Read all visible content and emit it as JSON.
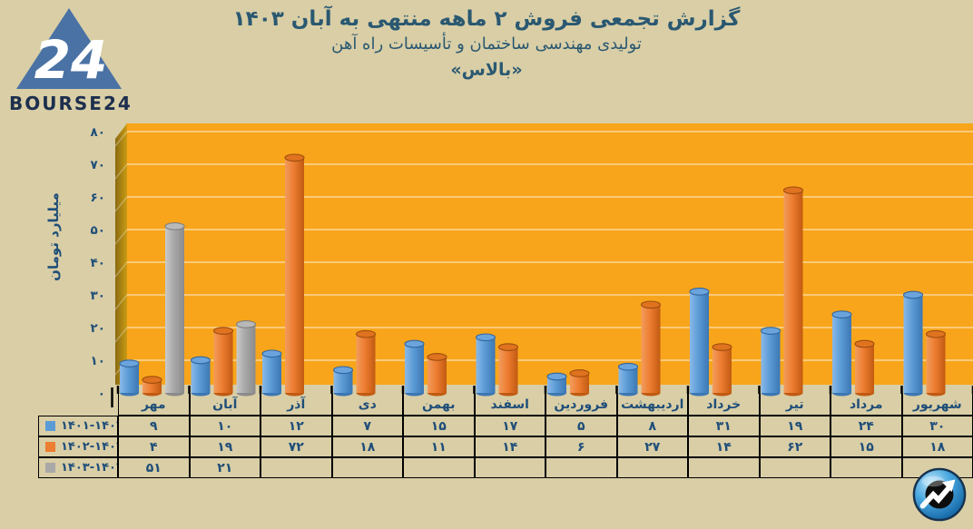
{
  "brand": {
    "wordmark": "BOURSE24",
    "triangle_number": "24",
    "triangle_color": "#4a72a4",
    "wordmark_color": "#1c2f4e"
  },
  "header": {
    "title": "گزارش تجمعی فروش ۲ ماهه منتهی به آبان ۱۴۰۳",
    "subtitle": "تولیدی مهندسی ساختمان و تأسیسات راه آهن",
    "company": "«بالاس»"
  },
  "chart_data": {
    "type": "bar",
    "style": "3d-cylinder",
    "title": "گزارش تجمعی فروش ۲ ماهه منتهی به آبان ۱۴۰۳",
    "xlabel": "",
    "ylabel": "میلیارد تومان",
    "ylim": [
      0,
      80
    ],
    "ytick_step": 10,
    "ytick_labels": [
      "۰",
      "۱۰",
      "۲۰",
      "۳۰",
      "۴۰",
      "۵۰",
      "۶۰",
      "۷۰",
      "۸۰"
    ],
    "grid": true,
    "legend_position": "table-left-column",
    "categories": [
      "مهر",
      "آبان",
      "آذر",
      "دی",
      "بهمن",
      "اسفند",
      "فروردین",
      "اردیبهشت",
      "خرداد",
      "تیر",
      "مرداد",
      "شهریور"
    ],
    "series": [
      {
        "name": "۱۴۰۱-۱۴۰۲",
        "color": "#5b9bd5",
        "values": [
          9,
          10,
          12,
          7,
          15,
          17,
          5,
          8,
          31,
          19,
          24,
          30
        ],
        "display": [
          "۹",
          "۱۰",
          "۱۲",
          "۷",
          "۱۵",
          "۱۷",
          "۵",
          "۸",
          "۳۱",
          "۱۹",
          "۲۴",
          "۳۰"
        ],
        "shades": {
          "light": "#8ab9e8",
          "mid": "#5b9bd5",
          "dark": "#3c77b3",
          "cap": "#6ba4dd",
          "capStroke": "#31669e"
        }
      },
      {
        "name": "۱۴۰۲-۱۴۰۳",
        "color": "#ed7d31",
        "values": [
          4,
          19,
          72,
          18,
          11,
          14,
          6,
          27,
          14,
          62,
          15,
          18
        ],
        "display": [
          "۴",
          "۱۹",
          "۷۲",
          "۱۸",
          "۱۱",
          "۱۴",
          "۶",
          "۲۷",
          "۱۴",
          "۶۲",
          "۱۵",
          "۱۸"
        ],
        "shades": {
          "light": "#f29c5d",
          "mid": "#ed7d31",
          "dark": "#c15a11",
          "cap": "#e0731f",
          "capStroke": "#9e4d0e"
        }
      },
      {
        "name": "۱۴۰۳-۱۴۰۴",
        "color": "#a8a8a8",
        "values": [
          51,
          21,
          null,
          null,
          null,
          null,
          null,
          null,
          null,
          null,
          null,
          null
        ],
        "display": [
          "۵۱",
          "۲۱",
          "",
          "",
          "",
          "",
          "",
          "",
          "",
          "",
          "",
          ""
        ],
        "shades": {
          "light": "#cacaca",
          "mid": "#a8a8a8",
          "dark": "#8b8b8b",
          "cap": "#b9b9b9",
          "capStroke": "#7f7f7f"
        }
      }
    ],
    "plot": {
      "area": "#f8a51b",
      "wall_dark": "#8a6a12",
      "wall_light": "#c99c13",
      "gridline": "rgba(255,255,255,0.55)",
      "axis_text": "#1f4e79"
    }
  },
  "icons": {
    "watermark": "trend-arrow-circle-icon",
    "logo": "bourse24-triangle-logo"
  }
}
